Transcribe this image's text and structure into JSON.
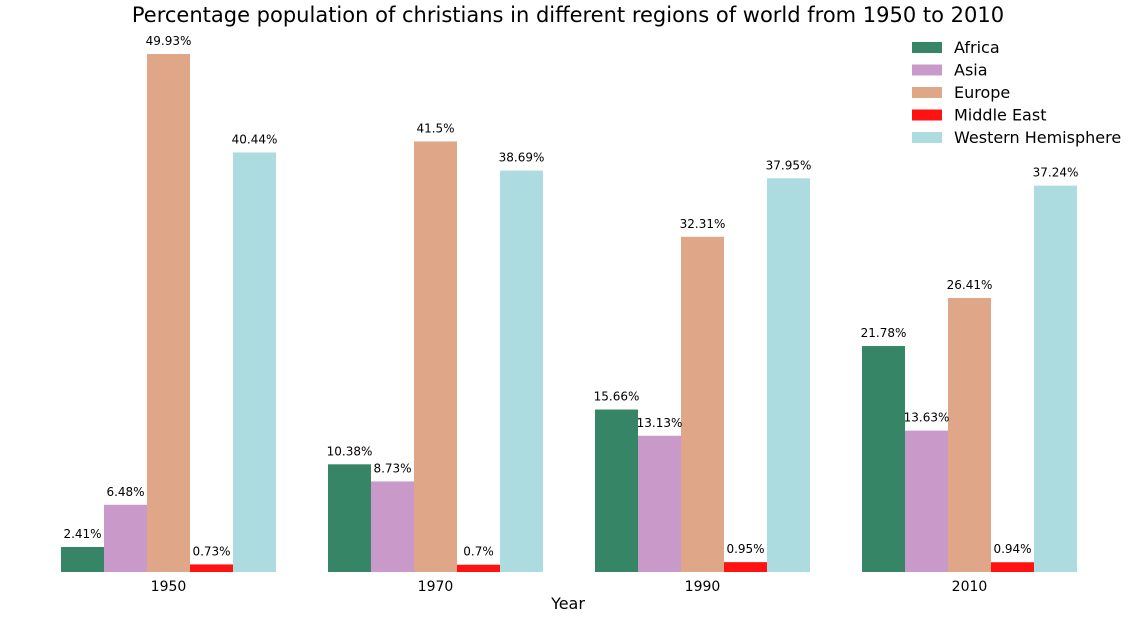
{
  "chart_data": {
    "type": "bar",
    "title": "Percentage population of christians in different regions of world from 1950 to 2010",
    "xlabel": "Year",
    "ylabel": "",
    "categories": [
      "1950",
      "1970",
      "1990",
      "2010"
    ],
    "ylim": [
      0,
      50
    ],
    "grid": false,
    "legend_position": "top-right",
    "series": [
      {
        "name": "Africa",
        "color": "#368566",
        "values": [
          2.41,
          10.38,
          15.66,
          21.78
        ],
        "labels": [
          "2.41%",
          "10.38%",
          "15.66%",
          "21.78%"
        ]
      },
      {
        "name": "Asia",
        "color": "#c899c9",
        "values": [
          6.48,
          8.73,
          13.13,
          13.63
        ],
        "labels": [
          "6.48%",
          "8.73%",
          "13.13%",
          "13.63%"
        ]
      },
      {
        "name": "Europe",
        "color": "#dfa787",
        "values": [
          49.93,
          41.5,
          32.31,
          26.41
        ],
        "labels": [
          "49.93%",
          "41.5%",
          "32.31%",
          "26.41%"
        ]
      },
      {
        "name": "Middle East",
        "color": "#ff1212",
        "values": [
          0.73,
          0.7,
          0.95,
          0.94
        ],
        "labels": [
          "0.73%",
          "0.7%",
          "0.95%",
          "0.94%"
        ]
      },
      {
        "name": "Western Hemisphere",
        "color": "#acdce0",
        "values": [
          40.44,
          38.69,
          37.95,
          37.24
        ],
        "labels": [
          "40.44%",
          "38.69%",
          "37.95%",
          "37.24%"
        ]
      }
    ]
  }
}
